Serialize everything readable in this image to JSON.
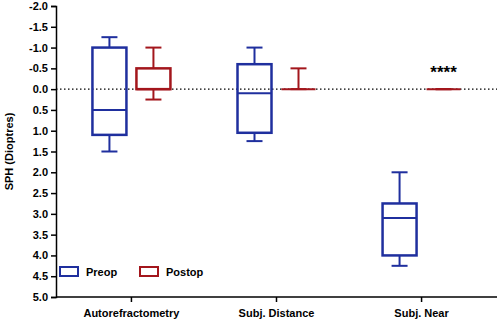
{
  "chart_data": {
    "type": "box",
    "y_label": "SPH (Dioptres)",
    "categories": [
      "Autorefractometry",
      "Subj. Distance",
      "Subj. Near"
    ],
    "series": [
      {
        "name": "Preop",
        "color": "#1f2f9e",
        "values": [
          {
            "min": -1.25,
            "q1": -1.0,
            "median": 0.5,
            "q3": 1.1,
            "max": 1.5
          },
          {
            "min": -1.0,
            "q1": -0.6,
            "median": 0.1,
            "q3": 1.05,
            "max": 1.25
          },
          {
            "min": 2.0,
            "q1": 2.75,
            "median": 3.1,
            "q3": 4.0,
            "max": 4.25
          }
        ]
      },
      {
        "name": "Postop",
        "color": "#a3161c",
        "values": [
          {
            "min": -1.0,
            "q1": -0.5,
            "median": 0.0,
            "q3": 0.0,
            "max": 0.25
          },
          {
            "min": -0.5,
            "q1": 0.0,
            "median": 0.0,
            "q3": 0.0,
            "max": 0.0
          },
          {
            "min": 0.0,
            "q1": 0.0,
            "median": 0.0,
            "q3": 0.0,
            "max": 0.0
          }
        ]
      }
    ],
    "ylim": [
      -2.0,
      5.0
    ],
    "yticks": [
      {
        "value": -2.0,
        "label": "-2.0"
      },
      {
        "value": -1.5,
        "label": "-1.5"
      },
      {
        "value": -1.0,
        "label": "-1.0"
      },
      {
        "value": -0.5,
        "label": "-0.5"
      },
      {
        "value": 0.0,
        "label": "0.0"
      },
      {
        "value": 0.5,
        "label": "0.5"
      },
      {
        "value": 1.0,
        "label": "1.0"
      },
      {
        "value": 1.5,
        "label": "1.5"
      },
      {
        "value": 2.0,
        "label": "2.0"
      },
      {
        "value": 2.5,
        "label": "2.5"
      },
      {
        "value": 3.0,
        "label": "3.0"
      },
      {
        "value": 3.5,
        "label": "3.5"
      },
      {
        "value": 4.0,
        "label": "4.0"
      },
      {
        "value": 4.5,
        "label": "4.5"
      },
      {
        "value": 5.0,
        "label": "5.0"
      }
    ],
    "reference_line": 0.0,
    "annotations": [
      {
        "text": "****",
        "category": "Subj. Near"
      }
    ],
    "legend": "lower left",
    "grid": false
  }
}
